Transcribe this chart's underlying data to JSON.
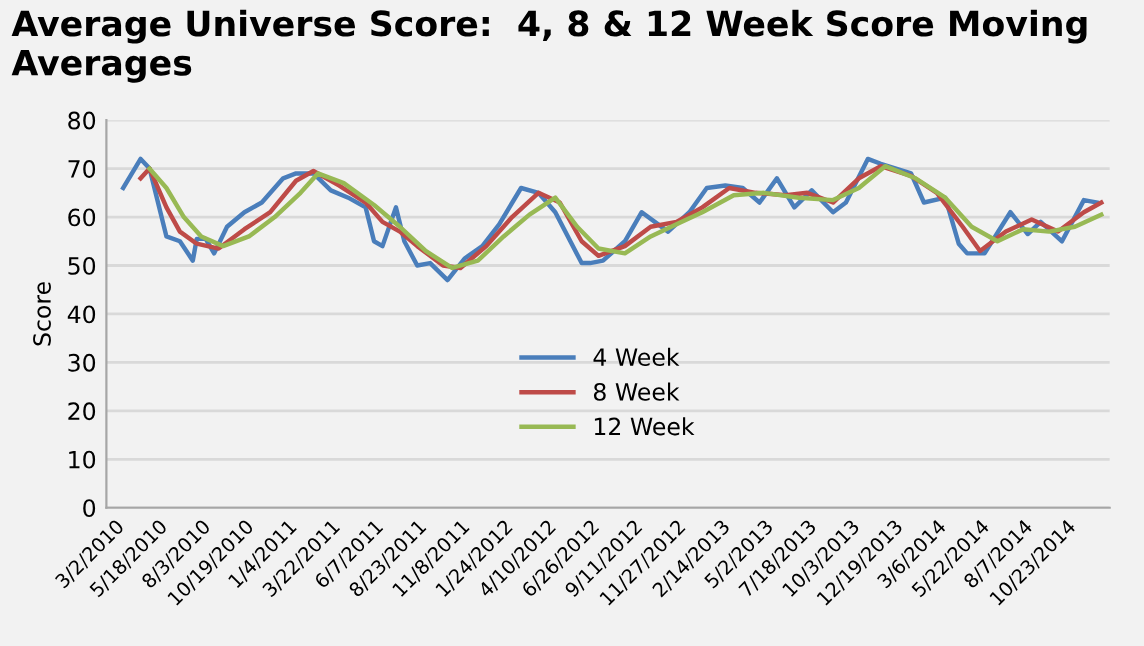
{
  "chart_data": {
    "type": "line",
    "title": "Average Universe Score:  4, 8 & 12 Week Score Moving Averages",
    "ylabel": "Score",
    "xlim": [
      "2010-02-15",
      "2015-01-08"
    ],
    "ylim": [
      0,
      80
    ],
    "yticks": [
      0,
      10,
      20,
      30,
      40,
      50,
      60,
      70,
      80
    ],
    "xticks": [
      {
        "value": "2010-03-02",
        "label": "3/2/2010"
      },
      {
        "value": "2010-05-18",
        "label": "5/18/2010"
      },
      {
        "value": "2010-08-03",
        "label": "8/3/2010"
      },
      {
        "value": "2010-10-19",
        "label": "10/19/2010"
      },
      {
        "value": "2011-01-04",
        "label": "1/4/2011"
      },
      {
        "value": "2011-03-22",
        "label": "3/22/2011"
      },
      {
        "value": "2011-06-07",
        "label": "6/7/2011"
      },
      {
        "value": "2011-08-23",
        "label": "8/23/2011"
      },
      {
        "value": "2011-11-08",
        "label": "11/8/2011"
      },
      {
        "value": "2012-01-24",
        "label": "1/24/2012"
      },
      {
        "value": "2012-04-10",
        "label": "4/10/2012"
      },
      {
        "value": "2012-06-26",
        "label": "6/26/2012"
      },
      {
        "value": "2012-09-11",
        "label": "9/11/2012"
      },
      {
        "value": "2012-11-27",
        "label": "11/27/2012"
      },
      {
        "value": "2013-02-14",
        "label": "2/14/2013"
      },
      {
        "value": "2013-05-02",
        "label": "5/2/2013"
      },
      {
        "value": "2013-07-18",
        "label": "7/18/2013"
      },
      {
        "value": "2013-10-03",
        "label": "10/3/2013"
      },
      {
        "value": "2013-12-19",
        "label": "12/19/2013"
      },
      {
        "value": "2014-03-06",
        "label": "3/6/2014"
      },
      {
        "value": "2014-05-22",
        "label": "5/22/2014"
      },
      {
        "value": "2014-08-07",
        "label": "8/7/2014"
      },
      {
        "value": "2014-10-23",
        "label": "10/23/2014"
      }
    ],
    "grid": "y",
    "legend": "bottom",
    "marker": "none",
    "line_style": "solid",
    "series": [
      {
        "name": "4 Week",
        "color": "#4a7ebb",
        "x": [
          "2010-03-17",
          "2010-04-17",
          "2010-05-03",
          "2010-06-02",
          "2010-06-26",
          "2010-07-19",
          "2010-07-26",
          "2010-08-11",
          "2010-08-26",
          "2010-09-18",
          "2010-10-19",
          "2010-11-19",
          "2010-12-27",
          "2011-01-19",
          "2011-02-19",
          "2011-03-22",
          "2011-04-22",
          "2011-05-23",
          "2011-06-07",
          "2011-06-22",
          "2011-07-16",
          "2011-07-31",
          "2011-08-23",
          "2011-09-15",
          "2011-10-16",
          "2011-11-16",
          "2011-12-17",
          "2012-01-16",
          "2012-02-24",
          "2012-03-26",
          "2012-04-25",
          "2012-06-11",
          "2012-06-26",
          "2012-07-19",
          "2012-08-27",
          "2012-09-26",
          "2012-11-12",
          "2012-12-20",
          "2013-01-20",
          "2013-02-22",
          "2013-03-25",
          "2013-04-24",
          "2013-05-25",
          "2013-06-25",
          "2013-07-26",
          "2013-09-02",
          "2013-09-25",
          "2013-11-03",
          "2013-11-26",
          "2014-01-19",
          "2014-02-11",
          "2014-03-21",
          "2014-04-14",
          "2014-04-29",
          "2014-05-30",
          "2014-07-15",
          "2014-08-15",
          "2014-09-07",
          "2014-10-15",
          "2014-11-23",
          "2014-12-16"
        ],
        "values": [
          66,
          72,
          70,
          56,
          55,
          51,
          55.5,
          55.5,
          52.5,
          58,
          61,
          63,
          68,
          69,
          69,
          65.5,
          64,
          62,
          55,
          54,
          62,
          55,
          50,
          50.5,
          47,
          51.5,
          54,
          58.5,
          66,
          65,
          61,
          50.5,
          50.5,
          51,
          55,
          61,
          57,
          61,
          66,
          66.5,
          66,
          63,
          68,
          62,
          65.5,
          61,
          63,
          72,
          71,
          69,
          63,
          64,
          54.5,
          52.5,
          52.5,
          61,
          56.5,
          59,
          55,
          63.5,
          63
        ]
      },
      {
        "name": "8 Week",
        "color": "#be4b48",
        "x": [
          "2010-04-17",
          "2010-05-03",
          "2010-06-02",
          "2010-06-26",
          "2010-07-26",
          "2010-09-03",
          "2010-10-19",
          "2010-12-04",
          "2011-01-19",
          "2011-02-19",
          "2011-04-06",
          "2011-05-23",
          "2011-06-22",
          "2011-07-23",
          "2011-08-23",
          "2011-10-08",
          "2011-11-08",
          "2011-12-24",
          "2012-02-08",
          "2012-03-26",
          "2012-05-03",
          "2012-06-11",
          "2012-07-11",
          "2012-08-27",
          "2012-10-12",
          "2012-11-27",
          "2013-01-12",
          "2013-03-01",
          "2013-04-17",
          "2013-06-10",
          "2013-07-18",
          "2013-09-02",
          "2013-10-18",
          "2013-11-26",
          "2014-01-19",
          "2014-03-06",
          "2014-04-21",
          "2014-05-22",
          "2014-07-07",
          "2014-08-22",
          "2014-10-08",
          "2014-11-23",
          "2014-12-24"
        ],
        "values": [
          68,
          70,
          62,
          57,
          54.5,
          53.5,
          57.5,
          61,
          67.5,
          69.5,
          66.5,
          63,
          59,
          57,
          54,
          50,
          49.5,
          54,
          60,
          65,
          63,
          55,
          52,
          54,
          58,
          59,
          62,
          66,
          65,
          64.5,
          65,
          63,
          68,
          70.5,
          68.5,
          65,
          58,
          53,
          57,
          59.5,
          57,
          61,
          63
        ]
      },
      {
        "name": "12 Week",
        "color": "#98b954",
        "x": [
          "2010-05-03",
          "2010-06-02",
          "2010-07-03",
          "2010-08-03",
          "2010-09-11",
          "2010-10-27",
          "2010-12-12",
          "2011-01-27",
          "2011-02-27",
          "2011-04-14",
          "2011-06-07",
          "2011-07-23",
          "2011-09-07",
          "2011-10-24",
          "2011-12-09",
          "2012-01-24",
          "2012-03-10",
          "2012-04-25",
          "2012-06-03",
          "2012-07-11",
          "2012-08-27",
          "2012-10-12",
          "2012-11-27",
          "2013-01-12",
          "2013-03-09",
          "2013-05-02",
          "2013-07-03",
          "2013-09-02",
          "2013-10-18",
          "2013-12-04",
          "2014-01-27",
          "2014-03-21",
          "2014-05-07",
          "2014-06-22",
          "2014-08-07",
          "2014-09-22",
          "2014-11-07",
          "2014-12-24"
        ],
        "values": [
          70,
          66,
          60,
          56,
          54,
          56,
          60,
          65,
          69,
          67,
          62.5,
          58,
          53,
          49.5,
          51,
          56,
          60.5,
          64,
          58,
          53.5,
          52.5,
          56,
          58.5,
          61,
          64.5,
          65,
          64,
          63.5,
          66,
          70.5,
          68,
          64,
          58,
          55,
          57.5,
          57,
          58,
          60.5
        ]
      }
    ]
  }
}
